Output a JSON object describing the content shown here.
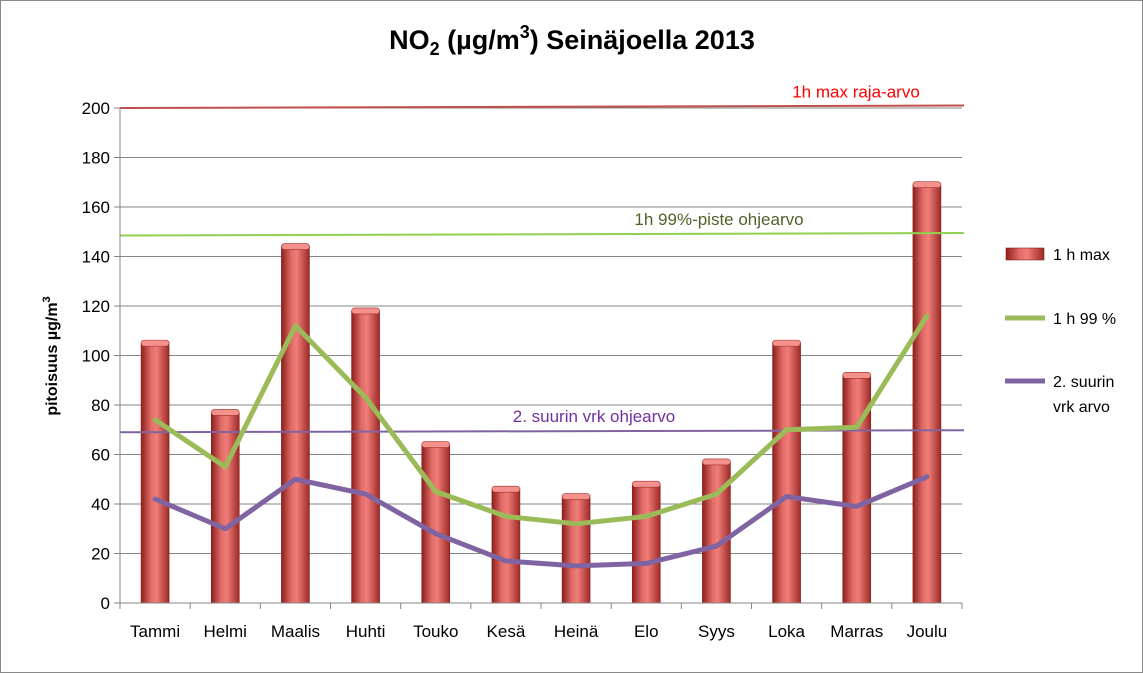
{
  "chart_data": {
    "type": "bar",
    "title": {
      "prefix": "NO",
      "sub": "2",
      "middle": " (µg/m",
      "sup": "3",
      "suffix": ") Seinäjoella 2013"
    },
    "ylabel": {
      "text": "pitoisuus µg/m",
      "sup": "3"
    },
    "ylim": [
      0,
      200
    ],
    "yticks": [
      0,
      20,
      40,
      60,
      80,
      100,
      120,
      140,
      160,
      180,
      200
    ],
    "grid": true,
    "legend_position": "right",
    "categories": [
      "Tammi",
      "Helmi",
      "Maalis",
      "Huhti",
      "Touko",
      "Kesä",
      "Heinä",
      "Elo",
      "Syys",
      "Loka",
      "Marras",
      "Joulu"
    ],
    "series": [
      {
        "name": "1 h max",
        "type": "bar",
        "color": "#c0504d",
        "values": [
          105,
          77,
          144,
          118,
          64,
          46,
          43,
          48,
          57,
          105,
          92,
          169
        ]
      },
      {
        "name": "1 h 99 %",
        "type": "line",
        "color": "#9bbb59",
        "values": [
          74,
          55,
          112,
          83,
          45,
          35,
          32,
          35,
          44,
          70,
          71,
          116
        ]
      },
      {
        "name": "2. suurin vrk arvo",
        "legend_lines": [
          "2. suurin",
          "vrk arvo"
        ],
        "type": "line",
        "color": "#8064a2",
        "values": [
          42,
          30,
          50,
          44,
          28,
          17,
          15,
          16,
          23,
          43,
          39,
          51
        ]
      }
    ],
    "reference_lines": [
      {
        "label": "1h max raja-arvo",
        "start": 200,
        "end": 201,
        "color": "#c0504d",
        "text_color": "#ff0000"
      },
      {
        "label": "1h 99%-piste ohjearvo",
        "start": 148.5,
        "end": 149.5,
        "color": "#92d050",
        "text_color": "#4f6228"
      },
      {
        "label": "2. suurin vrk ohjearvo",
        "start": 69,
        "end": 69.8,
        "color": "#8064a2",
        "text_color": "#7030a0"
      }
    ]
  }
}
